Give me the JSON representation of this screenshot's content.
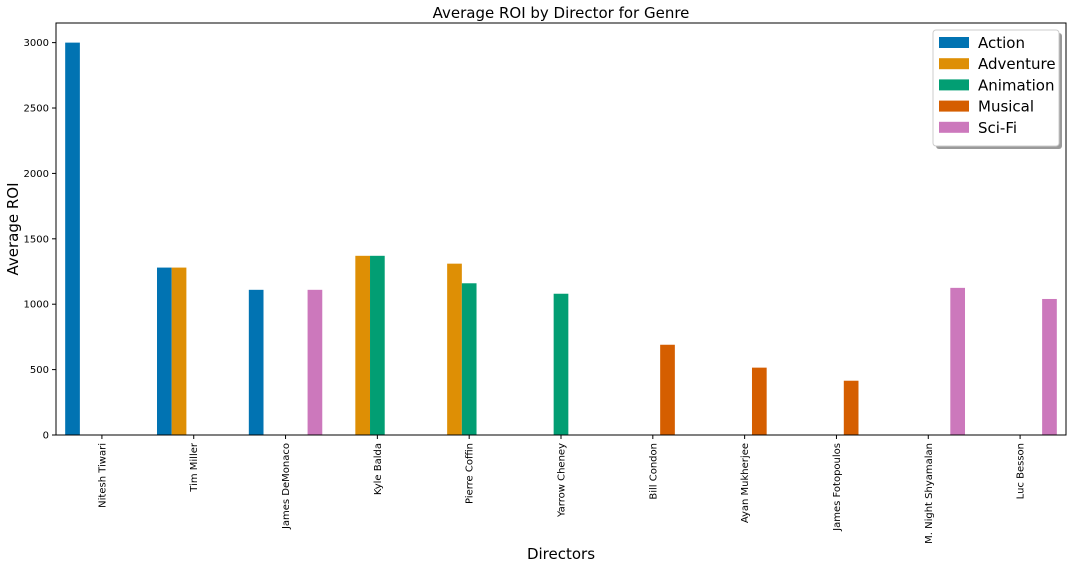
{
  "chart_data": {
    "type": "bar",
    "title": "Average ROI by Director for Genre",
    "xlabel": "Directors",
    "ylabel": "Average ROI",
    "ylim": [
      0,
      3150
    ],
    "yticks": [
      0,
      500,
      1000,
      1500,
      2000,
      2500,
      3000
    ],
    "grid": false,
    "legend_position": "top-right",
    "categories": [
      "Nitesh Tiwari",
      "Tim Miller",
      "James DeMonaco",
      "Kyle Balda",
      "Pierre Coffin",
      "Yarrow Cheney",
      "Bill Condon",
      "Ayan Mukherjee",
      "James Fotopoulos",
      "M. Night Shyamalan",
      "Luc Besson"
    ],
    "series": [
      {
        "name": "Action",
        "color": "#0173b2",
        "values": [
          3000,
          1280,
          1110,
          null,
          null,
          null,
          null,
          null,
          null,
          null,
          null
        ]
      },
      {
        "name": "Adventure",
        "color": "#de8f05",
        "values": [
          null,
          1280,
          null,
          1370,
          1310,
          null,
          null,
          null,
          null,
          null,
          null
        ]
      },
      {
        "name": "Animation",
        "color": "#029e73",
        "values": [
          null,
          null,
          null,
          1370,
          1160,
          1080,
          null,
          null,
          null,
          null,
          null
        ]
      },
      {
        "name": "Musical",
        "color": "#d55e00",
        "values": [
          null,
          null,
          null,
          null,
          null,
          null,
          690,
          515,
          415,
          null,
          null
        ]
      },
      {
        "name": "Sci-Fi",
        "color": "#cc78bc",
        "values": [
          null,
          null,
          1110,
          null,
          null,
          null,
          null,
          null,
          null,
          1125,
          1040
        ]
      }
    ]
  }
}
